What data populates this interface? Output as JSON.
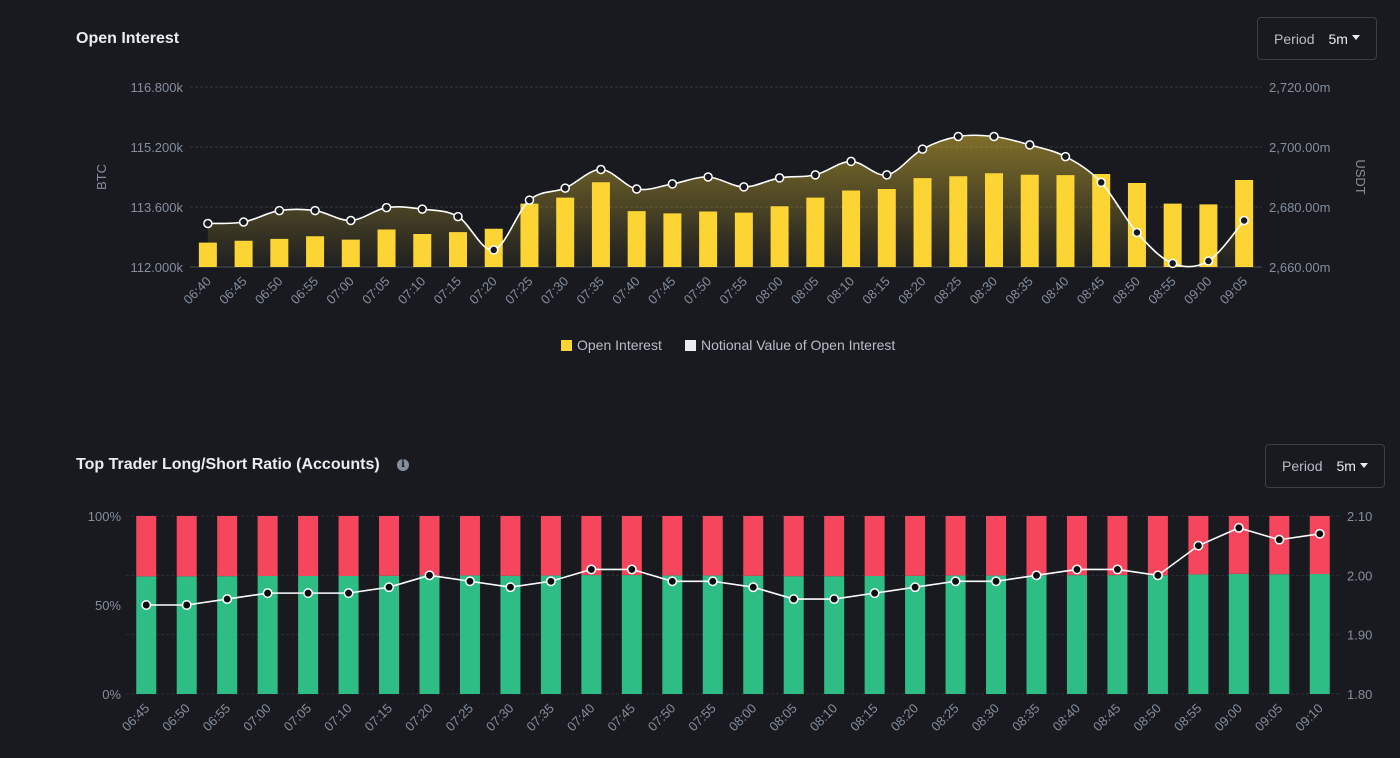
{
  "chart_data": [
    {
      "type": "bar",
      "title": "Open Interest",
      "period": {
        "label": "Period",
        "value": "5m"
      },
      "categories": [
        "06:40",
        "06:45",
        "06:50",
        "06:55",
        "07:00",
        "07:05",
        "07:10",
        "07:15",
        "07:20",
        "07:25",
        "07:30",
        "07:35",
        "07:40",
        "07:45",
        "07:50",
        "07:55",
        "08:00",
        "08:05",
        "08:10",
        "08:15",
        "08:20",
        "08:25",
        "08:30",
        "08:35",
        "08:40",
        "08:45",
        "08:50",
        "08:55",
        "09:00",
        "09:05"
      ],
      "left_axis": {
        "label": "BTC",
        "ticks": [
          "112.000k",
          "113.600k",
          "115.200k",
          "116.800k"
        ],
        "ylim": [
          112000,
          116800
        ]
      },
      "right_axis": {
        "label": "USDT",
        "ticks": [
          "2,660.00m",
          "2,680.00m",
          "2,700.00m",
          "2,720.00m"
        ],
        "ylim": [
          2660,
          2720
        ]
      },
      "series": [
        {
          "name": "Open Interest",
          "type": "bar",
          "axis": "left",
          "color": "#fcd535",
          "values": [
            112650,
            112700,
            112750,
            112820,
            112730,
            113000,
            112880,
            112930,
            113020,
            113690,
            113850,
            114260,
            113490,
            113430,
            113480,
            113450,
            113620,
            113850,
            114040,
            114080,
            114370,
            114420,
            114500,
            114460,
            114450,
            114480,
            114240,
            113690,
            113670,
            114320
          ]
        },
        {
          "name": "Notional Value of Open Interest",
          "type": "line",
          "axis": "right",
          "color": "#ffffff",
          "values": [
            2674.5,
            2675.0,
            2678.8,
            2678.8,
            2675.5,
            2679.8,
            2679.3,
            2676.8,
            2665.7,
            2682.3,
            2686.3,
            2692.5,
            2686.0,
            2687.7,
            2690.0,
            2686.7,
            2689.7,
            2690.7,
            2695.2,
            2690.7,
            2699.3,
            2703.5,
            2703.5,
            2700.7,
            2696.8,
            2688.2,
            2671.5,
            2661.2,
            2662.0,
            2675.5
          ]
        }
      ]
    },
    {
      "type": "bar",
      "title": "Top Trader Long/Short Ratio (Accounts)",
      "period": {
        "label": "Period",
        "value": "5m"
      },
      "categories": [
        "06:45",
        "06:50",
        "06:55",
        "07:00",
        "07:05",
        "07:10",
        "07:15",
        "07:20",
        "07:25",
        "07:30",
        "07:35",
        "07:40",
        "07:45",
        "07:50",
        "07:55",
        "08:00",
        "08:05",
        "08:10",
        "08:15",
        "08:20",
        "08:25",
        "08:30",
        "08:35",
        "08:40",
        "08:45",
        "08:50",
        "08:55",
        "09:00",
        "09:05",
        "09:10"
      ],
      "left_axis": {
        "ticks": [
          "0%",
          "50%",
          "100%"
        ],
        "ylim": [
          0,
          100
        ]
      },
      "right_axis": {
        "ticks": [
          "1.80",
          "1.90",
          "2.00",
          "2.10"
        ],
        "ylim": [
          1.8,
          2.1
        ]
      },
      "series": [
        {
          "type": "stacked-bar",
          "axis": "left",
          "color": "#2ebd85",
          "values": [
            66.1,
            66.1,
            66.2,
            66.3,
            66.3,
            66.3,
            66.4,
            66.7,
            66.6,
            66.4,
            66.6,
            66.8,
            66.8,
            66.6,
            66.6,
            66.4,
            66.2,
            66.2,
            66.3,
            66.4,
            66.6,
            66.6,
            66.7,
            66.8,
            66.8,
            66.7,
            67.2,
            67.5,
            67.3,
            67.4
          ]
        },
        {
          "type": "stacked-bar",
          "axis": "left",
          "color": "#f6465d",
          "values": [
            33.9,
            33.9,
            33.8,
            33.7,
            33.7,
            33.7,
            33.6,
            33.3,
            33.4,
            33.6,
            33.4,
            33.2,
            33.2,
            33.4,
            33.4,
            33.6,
            33.8,
            33.8,
            33.7,
            33.6,
            33.4,
            33.4,
            33.3,
            33.2,
            33.2,
            33.3,
            32.8,
            32.5,
            32.7,
            32.6
          ]
        },
        {
          "type": "line",
          "axis": "right",
          "color": "#ffffff",
          "values": [
            1.95,
            1.95,
            1.96,
            1.97,
            1.97,
            1.97,
            1.98,
            2.0,
            1.99,
            1.98,
            1.99,
            2.01,
            2.01,
            1.99,
            1.99,
            1.98,
            1.96,
            1.96,
            1.97,
            1.98,
            1.99,
            1.99,
            2.0,
            2.01,
            2.01,
            2.0,
            2.05,
            2.08,
            2.06,
            2.07
          ]
        }
      ]
    }
  ]
}
